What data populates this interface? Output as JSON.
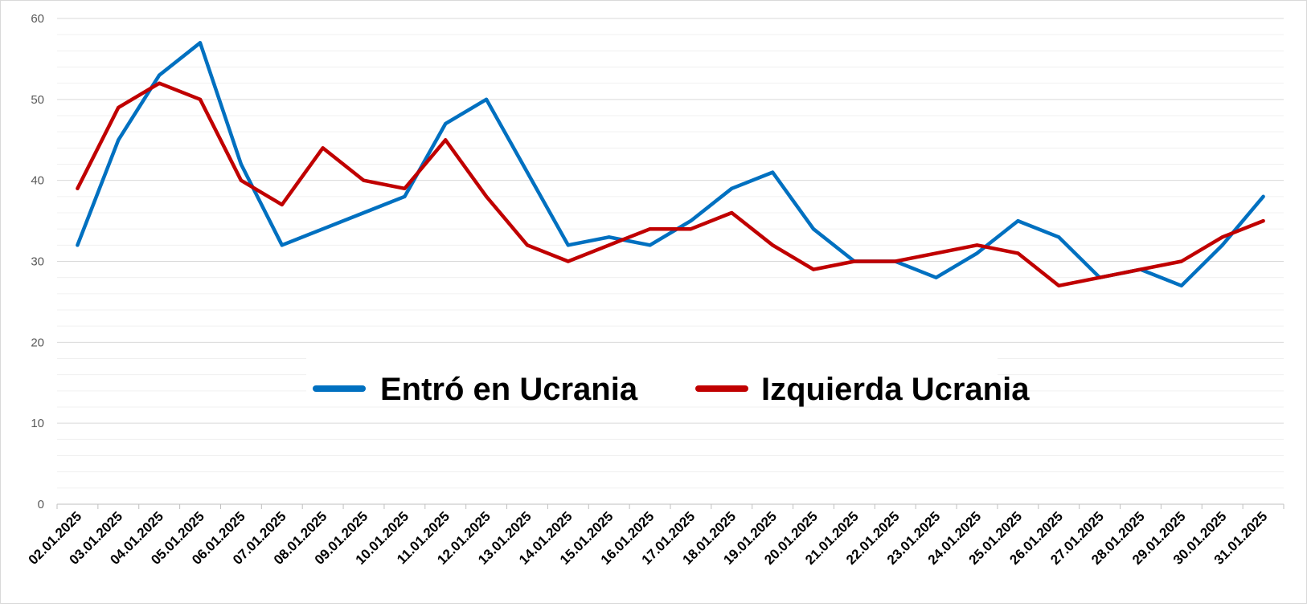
{
  "chart_data": {
    "type": "line",
    "categories": [
      "02.01.2025",
      "03.01.2025",
      "04.01.2025",
      "05.01.2025",
      "06.01.2025",
      "07.01.2025",
      "08.01.2025",
      "09.01.2025",
      "10.01.2025",
      "11.01.2025",
      "12.01.2025",
      "13.01.2025",
      "14.01.2025",
      "15.01.2025",
      "16.01.2025",
      "17.01.2025",
      "18.01.2025",
      "19.01.2025",
      "20.01.2025",
      "21.01.2025",
      "22.01.2025",
      "23.01.2025",
      "24.01.2025",
      "25.01.2025",
      "26.01.2025",
      "27.01.2025",
      "28.01.2025",
      "29.01.2025",
      "30.01.2025",
      "31.01.2025"
    ],
    "series": [
      {
        "name": "Entró en Ucrania",
        "color": "#0070c0",
        "values": [
          32,
          45,
          53,
          57,
          42,
          32,
          34,
          36,
          38,
          47,
          50,
          41,
          32,
          33,
          32,
          35,
          39,
          41,
          34,
          30,
          30,
          28,
          31,
          35,
          33,
          28,
          29,
          27,
          32,
          38
        ]
      },
      {
        "name": "Izquierda Ucrania",
        "color": "#c00000",
        "values": [
          39,
          49,
          52,
          50,
          40,
          37,
          44,
          40,
          39,
          45,
          38,
          32,
          30,
          32,
          34,
          34,
          36,
          32,
          29,
          30,
          30,
          31,
          32,
          31,
          27,
          28,
          29,
          30,
          33,
          35
        ]
      }
    ],
    "ylim": [
      0,
      60
    ],
    "yticks": [
      "0",
      "10",
      "20",
      "30",
      "40",
      "50",
      "60"
    ],
    "grid": true,
    "legend_position": "center"
  }
}
